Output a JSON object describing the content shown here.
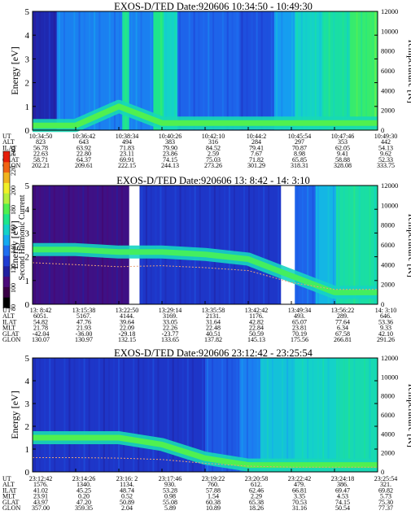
{
  "colorbar": {
    "label": "Second Harmonic Current",
    "ticks": [
      "80",
      "100",
      "120",
      "140",
      "160",
      "180",
      "200",
      "220",
      "240"
    ],
    "colors": [
      "#000000",
      "#3a0046",
      "#4b0a7a",
      "#2020a0",
      "#1e3cd2",
      "#1e6ef0",
      "#14aaf0",
      "#14d2c8",
      "#1ee68c",
      "#50f050",
      "#b4f03c",
      "#f0f028",
      "#f0b41e",
      "#f06414",
      "#e61e0a"
    ]
  },
  "panels": [
    {
      "title": "EXOS-D/TED",
      "date": "Date:920606",
      "time_range": "10:34:50 - 10:49:30",
      "ylabel": "Energy [eV]",
      "y2label": "Temperature [K]",
      "yticks": [
        "0",
        "1",
        "2",
        "3",
        "4",
        "5"
      ],
      "y2ticks": [
        "0",
        "2000",
        "4000",
        "6000",
        "8000",
        "10000",
        "12000"
      ],
      "rows": [
        {
          "label": "UT",
          "values": [
            "10:34:50",
            "10:36:42",
            "10:38:34",
            "10:40:26",
            "10:42:10",
            "10:44:2",
            "10:45:54",
            "10:47:46",
            "10:49:30"
          ]
        },
        {
          "label": "ALT",
          "values": [
            "823",
            "643",
            "494",
            "383",
            "316",
            "284",
            "297",
            "353",
            "442"
          ]
        },
        {
          "label": "ILAT",
          "values": [
            "56.78",
            "63.92",
            "71.83",
            "79.90",
            "84.52",
            "79.41",
            "70.87",
            "62.05",
            "54.13"
          ]
        },
        {
          "label": "MLT",
          "values": [
            "22.63",
            "22.80",
            "23.11",
            "23.86",
            "2.59",
            "7.67",
            "8.98",
            "9.41",
            "9.62"
          ]
        },
        {
          "label": "GLAT",
          "values": [
            "58.71",
            "64.37",
            "69.91",
            "74.15",
            "75.03",
            "71.82",
            "65.85",
            "58.88",
            "52.33"
          ]
        },
        {
          "label": "GLON",
          "values": [
            "202.21",
            "209.61",
            "222.15",
            "244.13",
            "273.26",
            "301.29",
            "318.31",
            "328.08",
            "333.75"
          ]
        }
      ]
    },
    {
      "title": "EXOS-D/TED",
      "date": "Date:920606",
      "time_range": "13: 8:42 - 14: 3:10",
      "ylabel": "Energy [eV]",
      "y2label": "Temperature [K]",
      "yticks": [
        "0",
        "1",
        "2",
        "3",
        "4",
        "5"
      ],
      "y2ticks": [
        "0",
        "2000",
        "4000",
        "6000",
        "8000",
        "10000",
        "12000"
      ],
      "rows": [
        {
          "label": "UT",
          "values": [
            "13: 8:42",
            "13:15:38",
            "13:22:50",
            "13:29:14",
            "13:35:58",
            "13:42:42",
            "13:49:34",
            "13:56:22",
            "14: 3:10"
          ]
        },
        {
          "label": "ALT",
          "values": [
            "6051.",
            "5167.",
            "4144.",
            "3169.",
            "2131.",
            "1176.",
            "493.",
            "289.",
            "646."
          ]
        },
        {
          "label": "ILAT",
          "values": [
            "54.82",
            "47.76",
            "39.64",
            "33.05",
            "31.64",
            "42.82",
            "65.07",
            "77.64",
            "53.36"
          ]
        },
        {
          "label": "MLT",
          "values": [
            "21.78",
            "21.93",
            "22.09",
            "22.26",
            "22.48",
            "22.84",
            "23.81",
            "6.34",
            "9.33"
          ]
        },
        {
          "label": "GLAT",
          "values": [
            "-42.04",
            "-36.00",
            "-29.18",
            "-23.77",
            "40.51",
            "50.59",
            "70.19",
            "67.58",
            "42.10"
          ]
        },
        {
          "label": "GLON",
          "values": [
            "130.07",
            "130.97",
            "132.15",
            "133.65",
            "137.82",
            "145.13",
            "175.56",
            "266.81",
            "291.26"
          ]
        }
      ]
    },
    {
      "title": "EXOS-D/TED",
      "date": "Date:920606",
      "time_range": "23:12:42 - 23:25:54",
      "ylabel": "Energy [eV]",
      "y2label": "Temperature [K]",
      "yticks": [
        "0",
        "1",
        "2",
        "3",
        "4",
        "5"
      ],
      "y2ticks": [
        "0",
        "2000",
        "4000",
        "6000",
        "8000",
        "10000",
        "12000"
      ],
      "rows": [
        {
          "label": "UT",
          "values": [
            "23:12:42",
            "23:14:26",
            "23:16: 2",
            "23:17:46",
            "23:19:22",
            "23:20:58",
            "23:22:42",
            "23:24:18",
            "23:25:54"
          ]
        },
        {
          "label": "ALT",
          "values": [
            "1576.",
            "1340.",
            "1134.",
            "930.",
            "760.",
            "612.",
            "479.",
            "386.",
            "321."
          ]
        },
        {
          "label": "ILAT",
          "values": [
            "41.02",
            "45.25",
            "48.74",
            "53.28",
            "57.88",
            "62.46",
            "66.81",
            "69.47",
            "69.82"
          ]
        },
        {
          "label": "MLT",
          "values": [
            "23.91",
            "0.20",
            "0.52",
            "0.98",
            "1.54",
            "2.29",
            "3.35",
            "4.53",
            "5.73"
          ]
        },
        {
          "label": "GLAT",
          "values": [
            "43.97",
            "47.20",
            "50.89",
            "55.08",
            "60.38",
            "65.38",
            "70.53",
            "74.15",
            "75.30"
          ]
        },
        {
          "label": "GLON",
          "values": [
            "357.00",
            "359.35",
            "2.04",
            "5.89",
            "10.89",
            "18.26",
            "31.16",
            "50.54",
            "77.37"
          ]
        }
      ]
    }
  ],
  "chart_data": [
    {
      "type": "heatmap",
      "title": "EXOS-D/TED   Date:920606  10:34:50 - 10:49:30",
      "xlabel": "",
      "ylabel": "Energy [eV]",
      "y2label": "Temperature [K]",
      "ylim": [
        0,
        5
      ],
      "y2lim": [
        0,
        12000
      ],
      "x_ticks": [
        "10:34:50",
        "10:36:42",
        "10:38:34",
        "10:40:26",
        "10:42:10",
        "10:44:2",
        "10:45:54",
        "10:47:46",
        "10:49:30"
      ],
      "colorbar_range": [
        80,
        240
      ],
      "bands": [
        {
          "from": 0.0,
          "to": 0.07,
          "level": 0.25
        },
        {
          "from": 0.07,
          "to": 0.26,
          "level": 0.45
        },
        {
          "from": 0.26,
          "to": 0.28,
          "level": 0.7
        },
        {
          "from": 0.28,
          "to": 0.35,
          "level": 0.45
        },
        {
          "from": 0.35,
          "to": 0.38,
          "level": 0.72
        },
        {
          "from": 0.38,
          "to": 0.42,
          "level": 0.62
        },
        {
          "from": 0.42,
          "to": 0.6,
          "level": 0.4
        },
        {
          "from": 0.6,
          "to": 0.7,
          "level": 0.36
        },
        {
          "from": 0.7,
          "to": 0.76,
          "level": 0.5
        },
        {
          "from": 0.76,
          "to": 0.84,
          "level": 0.62
        },
        {
          "from": 0.84,
          "to": 0.92,
          "level": 0.68
        },
        {
          "from": 0.92,
          "to": 1.0,
          "level": 0.76
        }
      ],
      "ridge": {
        "energy": [
          0.2,
          0.2,
          1.0,
          0.3,
          0.3,
          0.3,
          0.3,
          0.3,
          0.3
        ],
        "level": 0.8
      }
    },
    {
      "type": "heatmap",
      "title": "EXOS-D/TED   Date:920606  13: 8:42 - 14: 3:10",
      "xlabel": "",
      "ylabel": "Energy [eV]",
      "y2label": "Temperature [K]",
      "ylim": [
        0,
        5
      ],
      "y2lim": [
        0,
        12000
      ],
      "x_ticks": [
        "13: 8:42",
        "13:15:38",
        "13:22:50",
        "13:29:14",
        "13:35:58",
        "13:42:42",
        "13:49:34",
        "13:56:22",
        "14: 3:10"
      ],
      "colorbar_range": [
        80,
        240
      ],
      "bands": [
        {
          "from": 0.0,
          "to": 0.28,
          "level": 0.15
        },
        {
          "from": 0.28,
          "to": 0.31,
          "level": -1
        },
        {
          "from": 0.31,
          "to": 0.35,
          "level": 0.3
        },
        {
          "from": 0.35,
          "to": 0.72,
          "level": 0.3
        },
        {
          "from": 0.72,
          "to": 0.76,
          "level": -1
        },
        {
          "from": 0.76,
          "to": 0.82,
          "level": 0.4
        },
        {
          "from": 0.82,
          "to": 0.88,
          "level": 0.55
        },
        {
          "from": 0.88,
          "to": 1.0,
          "level": 0.68
        }
      ],
      "ridge": {
        "energy": [
          2.3,
          2.3,
          2.2,
          2.2,
          2.1,
          1.9,
          1.2,
          0.5,
          0.5
        ],
        "level": 0.78
      },
      "curve": {
        "temperature": [
          4200,
          4000,
          3800,
          3900,
          3700,
          3400,
          2200,
          1500,
          1500
        ]
      }
    },
    {
      "type": "heatmap",
      "title": "EXOS-D/TED   Date:920606  23:12:42 - 23:25:54",
      "xlabel": "",
      "ylabel": "Energy [eV]",
      "y2label": "Temperature [K]",
      "ylim": [
        0,
        5
      ],
      "y2lim": [
        0,
        12000
      ],
      "x_ticks": [
        "23:12:42",
        "23:14:26",
        "23:16: 2",
        "23:17:46",
        "23:19:22",
        "23:20:58",
        "23:22:42",
        "23:24:18",
        "23:25:54"
      ],
      "colorbar_range": [
        80,
        240
      ],
      "bands": [
        {
          "from": 0.0,
          "to": 0.5,
          "level": 0.3
        },
        {
          "from": 0.5,
          "to": 0.6,
          "level": 0.38
        },
        {
          "from": 0.6,
          "to": 0.66,
          "level": 0.45
        },
        {
          "from": 0.66,
          "to": 0.76,
          "level": 0.58
        },
        {
          "from": 0.76,
          "to": 0.88,
          "level": 0.62
        },
        {
          "from": 0.88,
          "to": 1.0,
          "level": 0.66
        }
      ],
      "ridge": {
        "energy": [
          1.5,
          1.5,
          1.5,
          1.2,
          0.6,
          0.3,
          0.3,
          0.3,
          0.3
        ],
        "level": 0.8
      },
      "curve": {
        "temperature": [
          1500,
          1500,
          1450,
          1300,
          900,
          600,
          500,
          500,
          500
        ]
      }
    }
  ]
}
